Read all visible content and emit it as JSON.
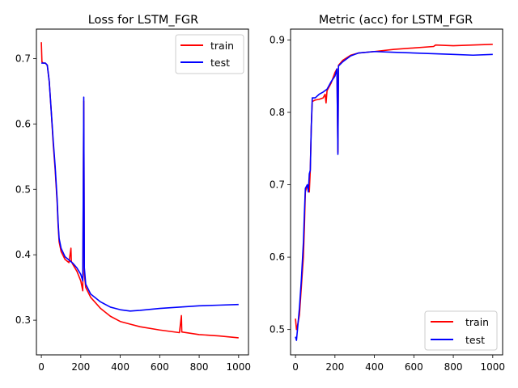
{
  "chart_data": [
    {
      "type": "line",
      "title": "Loss for LSTM_FGR",
      "xlabel": "",
      "ylabel": "",
      "xlim": [
        -25,
        1050
      ],
      "ylim": [
        0.247,
        0.745
      ],
      "xticks": [
        0,
        200,
        400,
        600,
        800,
        1000
      ],
      "yticks": [
        0.3,
        0.4,
        0.5,
        0.6,
        0.7
      ],
      "legend": "top-right",
      "grid": false,
      "series": [
        {
          "name": "train",
          "color": "#ff0000",
          "points": [
            [
              0,
              0.725
            ],
            [
              3,
              0.695
            ],
            [
              10,
              0.693
            ],
            [
              20,
              0.693
            ],
            [
              30,
              0.69
            ],
            [
              40,
              0.665
            ],
            [
              50,
              0.62
            ],
            [
              60,
              0.57
            ],
            [
              70,
              0.53
            ],
            [
              80,
              0.48
            ],
            [
              85,
              0.445
            ],
            [
              90,
              0.42
            ],
            [
              100,
              0.405
            ],
            [
              120,
              0.393
            ],
            [
              140,
              0.388
            ],
            [
              150,
              0.41
            ],
            [
              152,
              0.39
            ],
            [
              160,
              0.385
            ],
            [
              180,
              0.375
            ],
            [
              200,
              0.36
            ],
            [
              210,
              0.345
            ],
            [
              215,
              0.635
            ],
            [
              218,
              0.37
            ],
            [
              225,
              0.35
            ],
            [
              250,
              0.335
            ],
            [
              300,
              0.318
            ],
            [
              350,
              0.306
            ],
            [
              400,
              0.298
            ],
            [
              450,
              0.294
            ],
            [
              500,
              0.29
            ],
            [
              600,
              0.285
            ],
            [
              700,
              0.281
            ],
            [
              710,
              0.307
            ],
            [
              712,
              0.282
            ],
            [
              800,
              0.278
            ],
            [
              900,
              0.276
            ],
            [
              1000,
              0.273
            ]
          ]
        },
        {
          "name": "test",
          "color": "#0000ff",
          "points": [
            [
              0,
              0.693
            ],
            [
              10,
              0.693
            ],
            [
              20,
              0.693
            ],
            [
              30,
              0.69
            ],
            [
              40,
              0.665
            ],
            [
              50,
              0.62
            ],
            [
              60,
              0.575
            ],
            [
              70,
              0.535
            ],
            [
              80,
              0.485
            ],
            [
              85,
              0.45
            ],
            [
              90,
              0.425
            ],
            [
              100,
              0.41
            ],
            [
              120,
              0.397
            ],
            [
              140,
              0.392
            ],
            [
              160,
              0.387
            ],
            [
              180,
              0.38
            ],
            [
              200,
              0.37
            ],
            [
              210,
              0.36
            ],
            [
              215,
              0.641
            ],
            [
              218,
              0.38
            ],
            [
              225,
              0.355
            ],
            [
              250,
              0.34
            ],
            [
              300,
              0.328
            ],
            [
              350,
              0.32
            ],
            [
              400,
              0.316
            ],
            [
              450,
              0.314
            ],
            [
              500,
              0.315
            ],
            [
              600,
              0.318
            ],
            [
              700,
              0.32
            ],
            [
              800,
              0.322
            ],
            [
              900,
              0.323
            ],
            [
              1000,
              0.324
            ]
          ]
        }
      ]
    },
    {
      "type": "line",
      "title": "Metric (acc) for LSTM_FGR",
      "xlabel": "",
      "ylabel": "",
      "xlim": [
        -25,
        1050
      ],
      "ylim": [
        0.465,
        0.915
      ],
      "xticks": [
        0,
        200,
        400,
        600,
        800,
        1000
      ],
      "yticks": [
        0.5,
        0.6,
        0.7,
        0.8,
        0.9
      ],
      "legend": "bottom-right",
      "grid": false,
      "series": [
        {
          "name": "train",
          "color": "#ff0000",
          "points": [
            [
              0,
              0.515
            ],
            [
              5,
              0.5
            ],
            [
              10,
              0.505
            ],
            [
              20,
              0.52
            ],
            [
              30,
              0.56
            ],
            [
              40,
              0.6
            ],
            [
              45,
              0.64
            ],
            [
              50,
              0.69
            ],
            [
              60,
              0.7
            ],
            [
              70,
              0.69
            ],
            [
              75,
              0.72
            ],
            [
              80,
              0.78
            ],
            [
              85,
              0.815
            ],
            [
              100,
              0.817
            ],
            [
              120,
              0.818
            ],
            [
              140,
              0.82
            ],
            [
              150,
              0.825
            ],
            [
              155,
              0.813
            ],
            [
              160,
              0.83
            ],
            [
              180,
              0.84
            ],
            [
              200,
              0.855
            ],
            [
              210,
              0.86
            ],
            [
              215,
              0.745
            ],
            [
              218,
              0.865
            ],
            [
              240,
              0.872
            ],
            [
              280,
              0.879
            ],
            [
              320,
              0.882
            ],
            [
              400,
              0.884
            ],
            [
              500,
              0.887
            ],
            [
              600,
              0.889
            ],
            [
              700,
              0.891
            ],
            [
              710,
              0.893
            ],
            [
              800,
              0.892
            ],
            [
              900,
              0.893
            ],
            [
              1000,
              0.894
            ]
          ]
        },
        {
          "name": "test",
          "color": "#0000ff",
          "points": [
            [
              0,
              0.49
            ],
            [
              5,
              0.485
            ],
            [
              10,
              0.5
            ],
            [
              20,
              0.53
            ],
            [
              30,
              0.57
            ],
            [
              40,
              0.62
            ],
            [
              45,
              0.66
            ],
            [
              50,
              0.695
            ],
            [
              60,
              0.7
            ],
            [
              65,
              0.69
            ],
            [
              70,
              0.715
            ],
            [
              75,
              0.72
            ],
            [
              80,
              0.78
            ],
            [
              85,
              0.82
            ],
            [
              100,
              0.82
            ],
            [
              120,
              0.825
            ],
            [
              140,
              0.828
            ],
            [
              160,
              0.832
            ],
            [
              180,
              0.842
            ],
            [
              200,
              0.85
            ],
            [
              210,
              0.86
            ],
            [
              215,
              0.742
            ],
            [
              218,
              0.864
            ],
            [
              240,
              0.87
            ],
            [
              280,
              0.878
            ],
            [
              320,
              0.882
            ],
            [
              400,
              0.884
            ],
            [
              500,
              0.883
            ],
            [
              600,
              0.882
            ],
            [
              700,
              0.881
            ],
            [
              800,
              0.88
            ],
            [
              900,
              0.879
            ],
            [
              1000,
              0.88
            ]
          ]
        }
      ]
    }
  ]
}
